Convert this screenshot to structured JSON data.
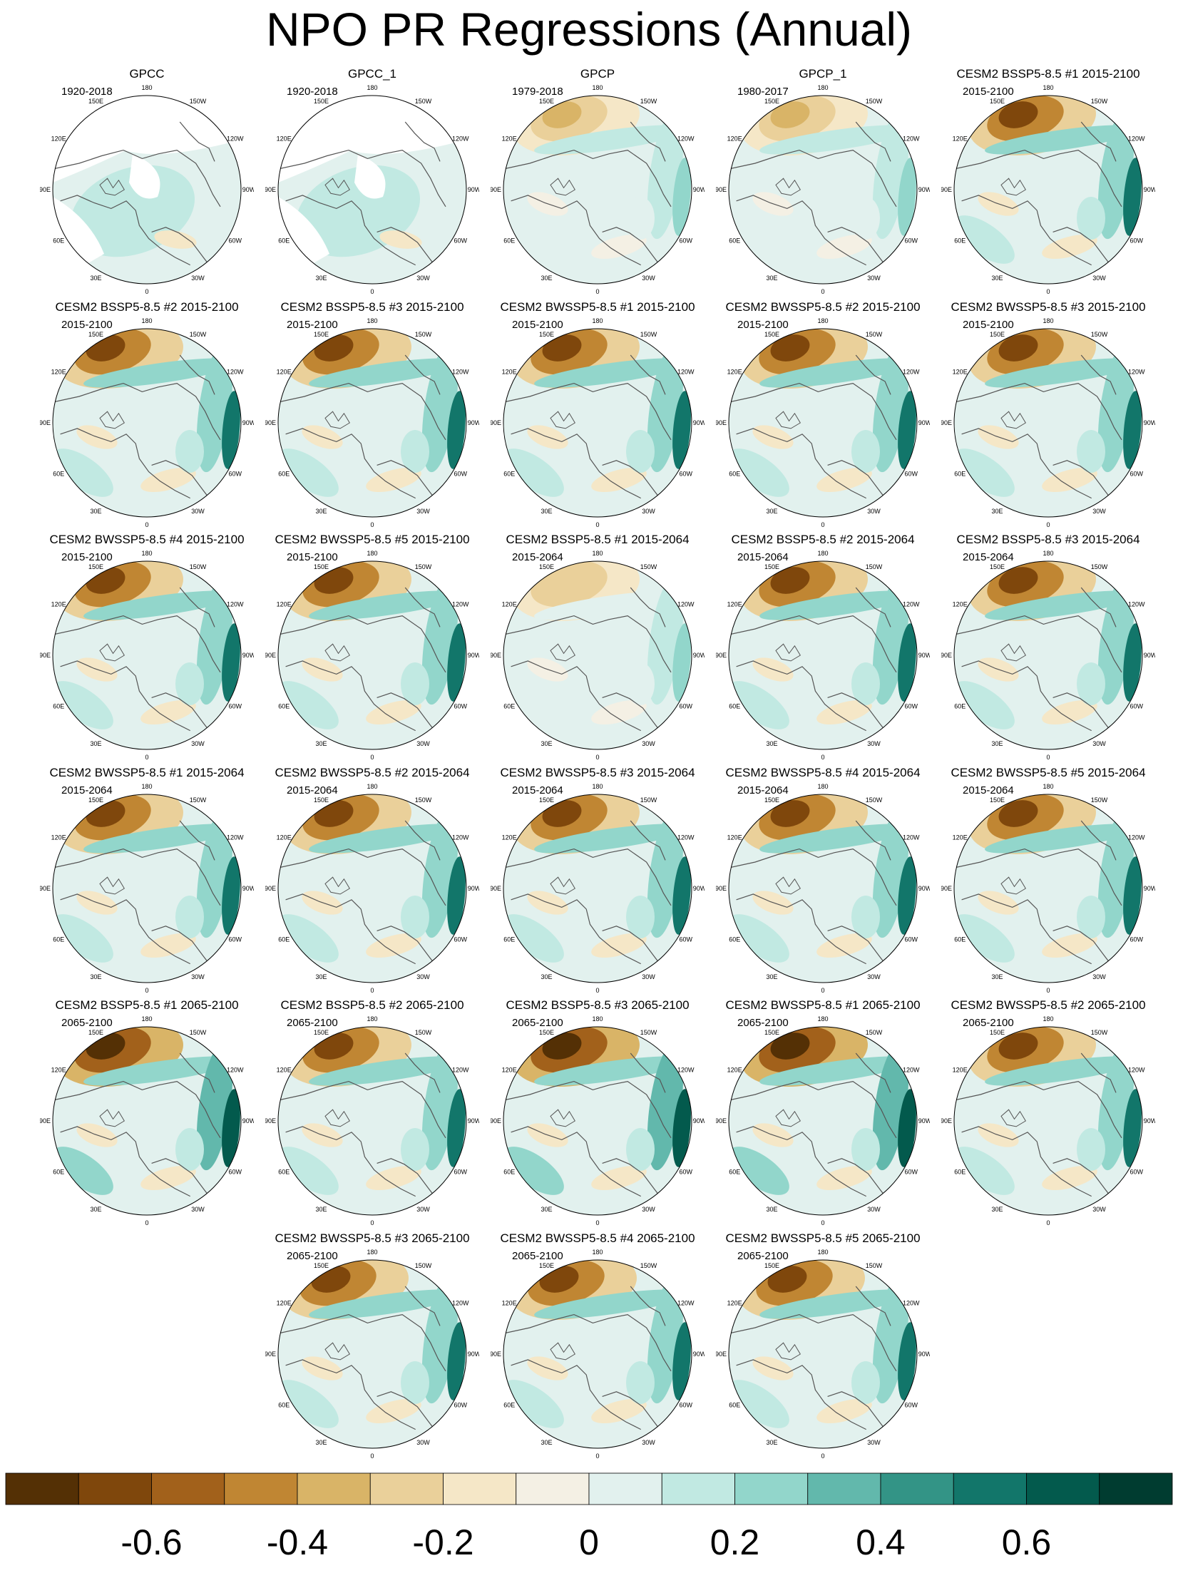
{
  "title": "NPO PR Regressions (Annual)",
  "panels": [
    {
      "name": "GPCC",
      "period": "1920-2018",
      "pattern": "obs_masked"
    },
    {
      "name": "GPCC_1",
      "period": "1920-2018",
      "pattern": "obs_masked"
    },
    {
      "name": "GPCP",
      "period": "1979-2018",
      "pattern": "obs"
    },
    {
      "name": "GPCP_1",
      "period": "1980-2017",
      "pattern": "obs"
    },
    {
      "name": "CESM2 BSSP5-8.5 #1 2015-2100",
      "period": "2015-2100",
      "pattern": "model"
    },
    {
      "name": "CESM2 BSSP5-8.5 #2 2015-2100",
      "period": "2015-2100",
      "pattern": "model"
    },
    {
      "name": "CESM2 BSSP5-8.5 #3 2015-2100",
      "period": "2015-2100",
      "pattern": "model"
    },
    {
      "name": "CESM2 BWSSP5-8.5 #1 2015-2100",
      "period": "2015-2100",
      "pattern": "model"
    },
    {
      "name": "CESM2 BWSSP5-8.5 #2 2015-2100",
      "period": "2015-2100",
      "pattern": "model"
    },
    {
      "name": "CESM2 BWSSP5-8.5 #3 2015-2100",
      "period": "2015-2100",
      "pattern": "model"
    },
    {
      "name": "CESM2 BWSSP5-8.5 #4 2015-2100",
      "period": "2015-2100",
      "pattern": "model"
    },
    {
      "name": "CESM2 BWSSP5-8.5 #5 2015-2100",
      "period": "2015-2100",
      "pattern": "model"
    },
    {
      "name": "CESM2 BSSP5-8.5 #1 2015-2064",
      "period": "2015-2064",
      "pattern": "weak"
    },
    {
      "name": "CESM2 BSSP5-8.5 #2 2015-2064",
      "period": "2015-2064",
      "pattern": "model"
    },
    {
      "name": "CESM2 BSSP5-8.5 #3 2015-2064",
      "period": "2015-2064",
      "pattern": "model"
    },
    {
      "name": "CESM2 BWSSP5-8.5 #1 2015-2064",
      "period": "2015-2064",
      "pattern": "model"
    },
    {
      "name": "CESM2 BWSSP5-8.5 #2 2015-2064",
      "period": "2015-2064",
      "pattern": "model"
    },
    {
      "name": "CESM2 BWSSP5-8.5 #3 2015-2064",
      "period": "2015-2064",
      "pattern": "model"
    },
    {
      "name": "CESM2 BWSSP5-8.5 #4 2015-2064",
      "period": "2015-2064",
      "pattern": "model"
    },
    {
      "name": "CESM2 BWSSP5-8.5 #5 2015-2064",
      "period": "2015-2064",
      "pattern": "model"
    },
    {
      "name": "CESM2 BSSP5-8.5 #1 2065-2100",
      "period": "2065-2100",
      "pattern": "strong"
    },
    {
      "name": "CESM2 BSSP5-8.5 #2 2065-2100",
      "period": "2065-2100",
      "pattern": "model"
    },
    {
      "name": "CESM2 BSSP5-8.5 #3 2065-2100",
      "period": "2065-2100",
      "pattern": "strong"
    },
    {
      "name": "CESM2 BWSSP5-8.5 #1 2065-2100",
      "period": "2065-2100",
      "pattern": "strong"
    },
    {
      "name": "CESM2 BWSSP5-8.5 #2 2065-2100",
      "period": "2065-2100",
      "pattern": "model"
    },
    {
      "name": "CESM2 BWSSP5-8.5 #3 2065-2100",
      "period": "2065-2100",
      "pattern": "model"
    },
    {
      "name": "CESM2 BWSSP5-8.5 #4 2065-2100",
      "period": "2065-2100",
      "pattern": "model"
    },
    {
      "name": "CESM2 BWSSP5-8.5 #5 2065-2100",
      "period": "2065-2100",
      "pattern": "model"
    }
  ],
  "map_lon_labels": [
    "180",
    "150E",
    "120E",
    "90E",
    "60E",
    "30E",
    "0",
    "30W",
    "60W",
    "90W",
    "120W",
    "150W"
  ],
  "chart_data": {
    "type": "heatmap",
    "projection": "north polar stereographic",
    "colorbar": {
      "levels": [
        -0.7,
        -0.6,
        -0.5,
        -0.4,
        -0.3,
        -0.2,
        -0.1,
        0,
        0.1,
        0.2,
        0.3,
        0.4,
        0.5,
        0.6,
        0.7
      ],
      "tick_labels": [
        "-0.6",
        "-0.4",
        "-0.2",
        "0",
        "0.2",
        "0.4",
        "0.6"
      ],
      "tick_values": [
        -0.6,
        -0.4,
        -0.2,
        0,
        0.2,
        0.4,
        0.6
      ],
      "colors": [
        "#543005",
        "#7f470c",
        "#a2611b",
        "#c08633",
        "#d9b467",
        "#ead09a",
        "#f5e7c7",
        "#f4f0e4",
        "#e2f1ee",
        "#c1e9e2",
        "#92d6cb",
        "#62b8ac",
        "#339486",
        "#12766a",
        "#035a4d",
        "#003c30"
      ]
    }
  }
}
